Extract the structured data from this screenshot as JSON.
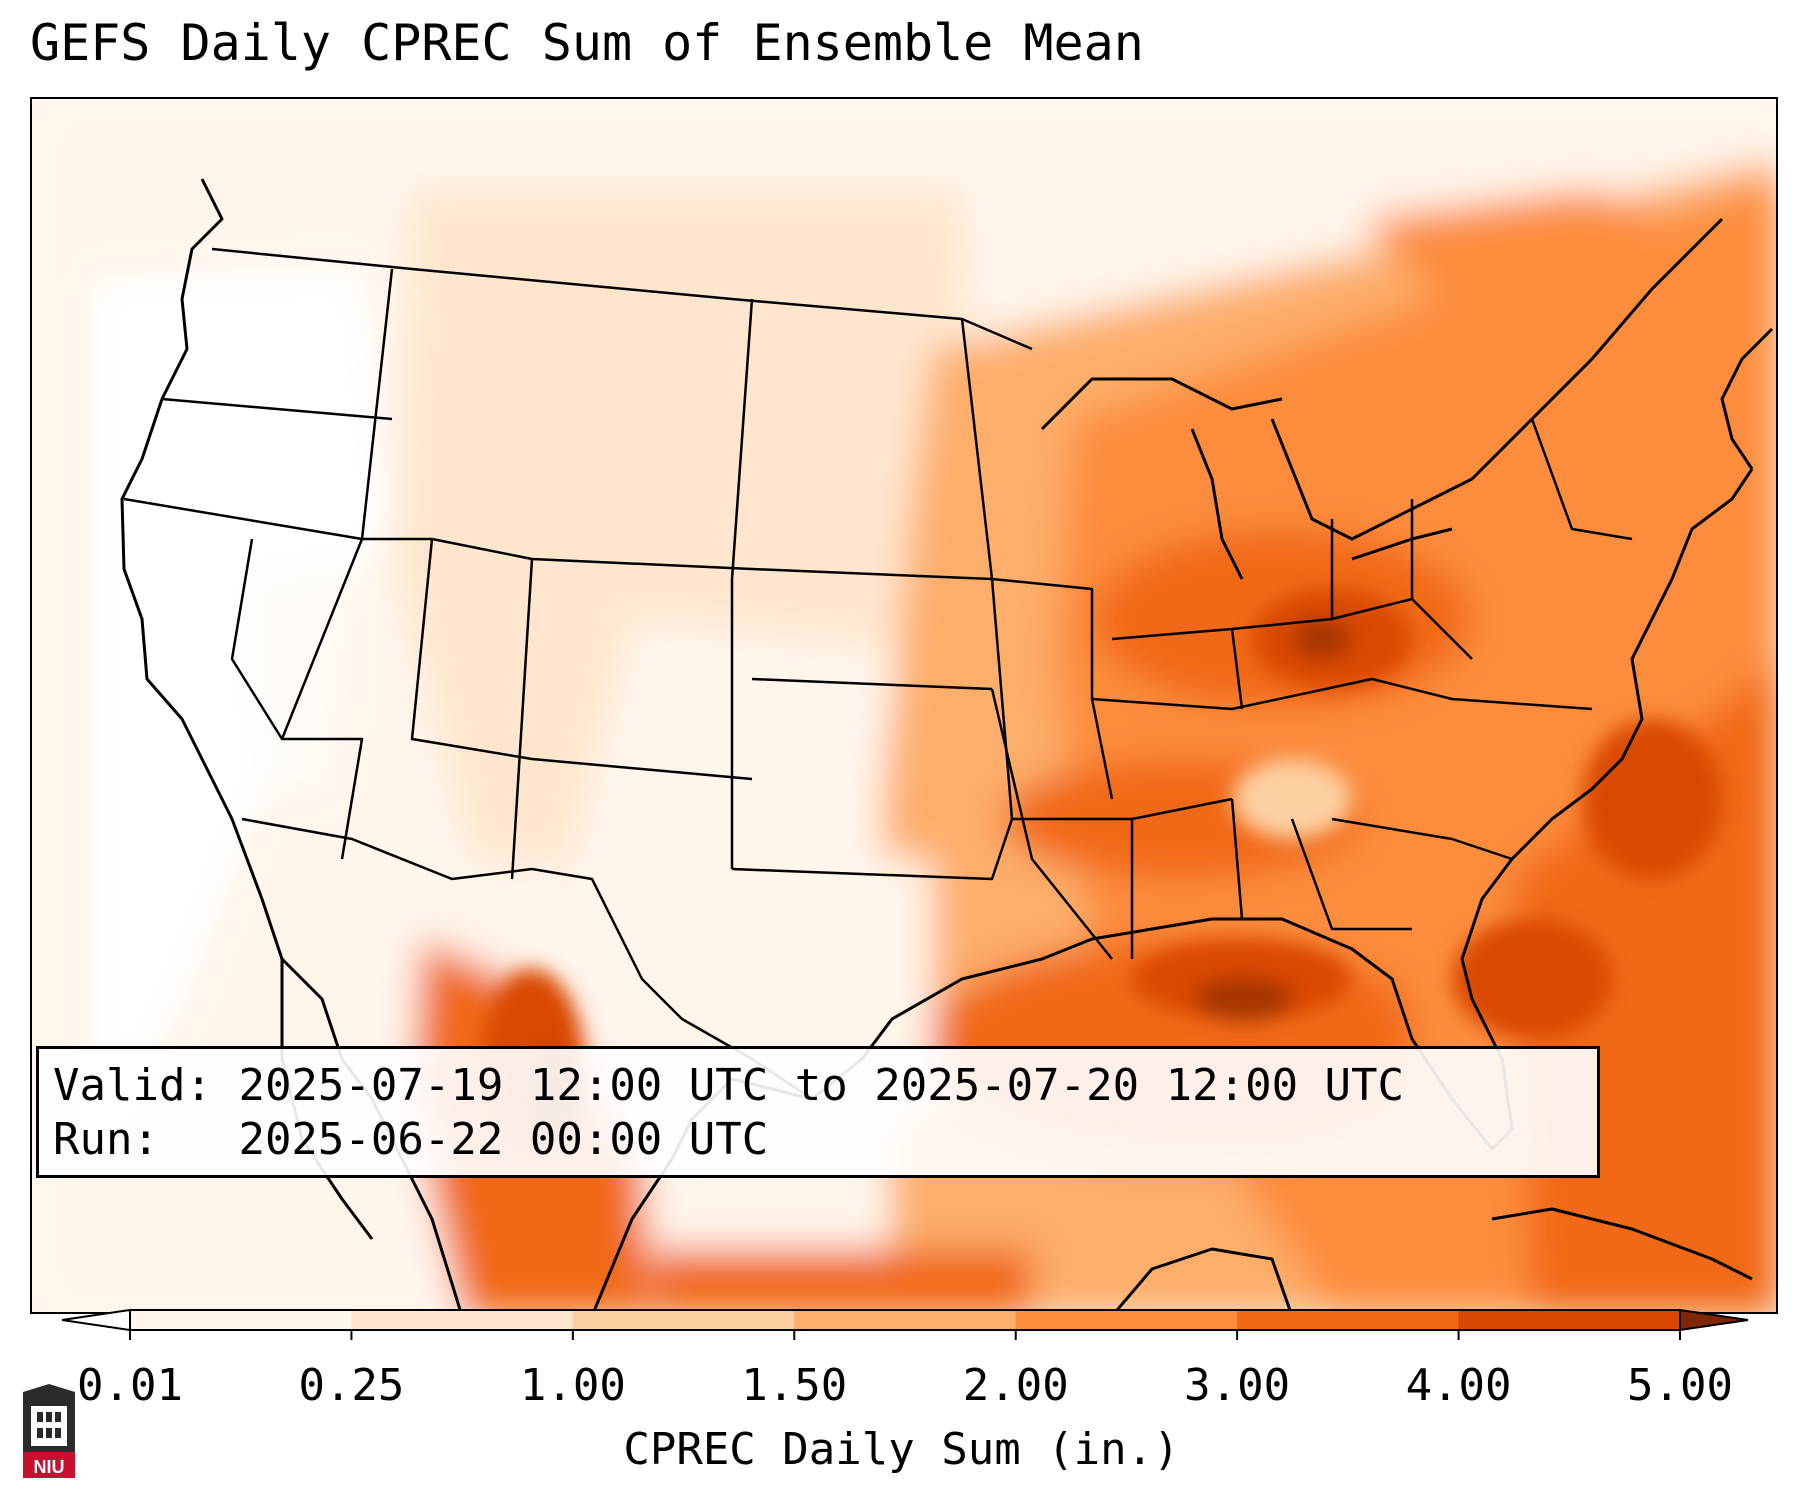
{
  "title": "GEFS Daily CPREC Sum of Ensemble Mean",
  "info": {
    "valid_label": "Valid:",
    "valid_value": "2025-07-19 12:00 UTC to 2025-07-20 12:00 UTC",
    "run_label": "Run:",
    "run_value": "2025-06-22 00:00 UTC"
  },
  "colorbar": {
    "label": "CPREC Daily Sum (in.)",
    "ticks": [
      "0.01",
      "0.25",
      "1.00",
      "1.50",
      "2.00",
      "3.00",
      "4.00",
      "5.00"
    ],
    "colors": [
      "#fff5eb",
      "#fee6ce",
      "#fdd0a2",
      "#fdae6b",
      "#fd8d3c",
      "#f16913",
      "#d94801",
      "#a63603"
    ],
    "under_color": "#ffffff",
    "over_color": "#7f2704"
  },
  "map": {
    "projection": "Lambert conformal, CONUS",
    "coastline_color": "#000000",
    "background_color": "#fff5eb",
    "precip_regions": [
      {
        "region": "Pacific Northwest coast",
        "level_in": 0.0
      },
      {
        "region": "Great Basin / Rockies",
        "level_in": 0.25
      },
      {
        "region": "Upper Midwest",
        "level_in": 1.5
      },
      {
        "region": "Ohio Valley",
        "level_in": 3.0
      },
      {
        "region": "Mid-Atlantic / Northeast",
        "level_in": 2.0
      },
      {
        "region": "Southeast / Gulf states",
        "level_in": 2.0
      },
      {
        "region": "Northern Gulf of Mexico",
        "level_in": 4.0
      },
      {
        "region": "Sierra Madre Occidental (Mexico)",
        "level_in": 4.0
      },
      {
        "region": "Western Atlantic",
        "level_in": 3.0
      },
      {
        "region": "Texas / Southern Plains",
        "level_in": 0.1
      }
    ]
  },
  "logo": {
    "text": "NIU",
    "color": "#c8102e",
    "icon": "university-tower-icon"
  }
}
